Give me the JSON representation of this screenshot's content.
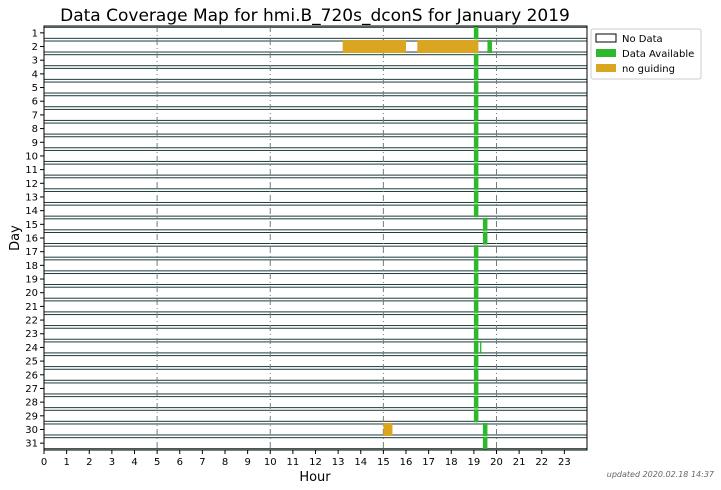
{
  "chart_data": {
    "type": "timeline",
    "title": "Data Coverage Map for hmi.B_720s_dconS for January 2019",
    "xlabel": "Hour",
    "ylabel": "Day",
    "xlim": [
      0,
      24
    ],
    "x_ticks": [
      "0",
      "1",
      "2",
      "3",
      "4",
      "5",
      "6",
      "7",
      "8",
      "9",
      "10",
      "11",
      "12",
      "13",
      "14",
      "15",
      "16",
      "17",
      "18",
      "19",
      "20",
      "21",
      "22",
      "23"
    ],
    "days": [
      "1",
      "2",
      "3",
      "4",
      "5",
      "6",
      "7",
      "8",
      "9",
      "10",
      "11",
      "12",
      "13",
      "14",
      "15",
      "16",
      "17",
      "18",
      "19",
      "20",
      "21",
      "22",
      "23",
      "24",
      "25",
      "26",
      "27",
      "28",
      "29",
      "30",
      "31"
    ],
    "legend": {
      "position": "top-right",
      "entries": [
        {
          "label": "No Data",
          "color": "#ffffff"
        },
        {
          "label": "Data Available",
          "color": "#2eb82e"
        },
        {
          "label": "no guiding",
          "color": "#daa520"
        }
      ]
    },
    "colors": {
      "no_data": "#ffffff",
      "data_available": "#2eb82e",
      "no_guiding": "#daa520",
      "row_line": "#1e3a3a",
      "major_grid": "#6e7f80"
    },
    "segments": [
      {
        "day": 1,
        "start": 19.0,
        "end": 19.2,
        "status": "data_available"
      },
      {
        "day": 2,
        "start": 13.2,
        "end": 16.0,
        "status": "no_guiding"
      },
      {
        "day": 2,
        "start": 16.5,
        "end": 19.2,
        "status": "no_guiding"
      },
      {
        "day": 2,
        "start": 19.6,
        "end": 19.8,
        "status": "data_available"
      },
      {
        "day": 3,
        "start": 19.0,
        "end": 19.2,
        "status": "data_available"
      },
      {
        "day": 4,
        "start": 19.0,
        "end": 19.2,
        "status": "data_available"
      },
      {
        "day": 5,
        "start": 19.0,
        "end": 19.2,
        "status": "data_available"
      },
      {
        "day": 6,
        "start": 19.0,
        "end": 19.2,
        "status": "data_available"
      },
      {
        "day": 7,
        "start": 19.0,
        "end": 19.2,
        "status": "data_available"
      },
      {
        "day": 8,
        "start": 19.0,
        "end": 19.2,
        "status": "data_available"
      },
      {
        "day": 9,
        "start": 19.0,
        "end": 19.2,
        "status": "data_available"
      },
      {
        "day": 10,
        "start": 19.0,
        "end": 19.2,
        "status": "data_available"
      },
      {
        "day": 11,
        "start": 19.0,
        "end": 19.2,
        "status": "data_available"
      },
      {
        "day": 12,
        "start": 19.0,
        "end": 19.2,
        "status": "data_available"
      },
      {
        "day": 13,
        "start": 19.0,
        "end": 19.2,
        "status": "data_available"
      },
      {
        "day": 14,
        "start": 19.0,
        "end": 19.2,
        "status": "data_available"
      },
      {
        "day": 15,
        "start": 19.4,
        "end": 19.6,
        "status": "data_available"
      },
      {
        "day": 16,
        "start": 19.4,
        "end": 19.6,
        "status": "data_available"
      },
      {
        "day": 17,
        "start": 19.0,
        "end": 19.2,
        "status": "data_available"
      },
      {
        "day": 18,
        "start": 19.0,
        "end": 19.2,
        "status": "data_available"
      },
      {
        "day": 19,
        "start": 19.0,
        "end": 19.2,
        "status": "data_available"
      },
      {
        "day": 20,
        "start": 19.0,
        "end": 19.2,
        "status": "data_available"
      },
      {
        "day": 21,
        "start": 19.0,
        "end": 19.2,
        "status": "data_available"
      },
      {
        "day": 22,
        "start": 19.0,
        "end": 19.2,
        "status": "data_available"
      },
      {
        "day": 23,
        "start": 19.0,
        "end": 19.2,
        "status": "data_available"
      },
      {
        "day": 24,
        "start": 19.0,
        "end": 19.2,
        "status": "data_available"
      },
      {
        "day": 24,
        "start": 19.27,
        "end": 19.33,
        "status": "data_available"
      },
      {
        "day": 25,
        "start": 19.0,
        "end": 19.2,
        "status": "data_available"
      },
      {
        "day": 26,
        "start": 19.0,
        "end": 19.2,
        "status": "data_available"
      },
      {
        "day": 27,
        "start": 19.0,
        "end": 19.2,
        "status": "data_available"
      },
      {
        "day": 28,
        "start": 19.0,
        "end": 19.2,
        "status": "data_available"
      },
      {
        "day": 29,
        "start": 19.0,
        "end": 19.2,
        "status": "data_available"
      },
      {
        "day": 30,
        "start": 15.0,
        "end": 15.4,
        "status": "no_guiding"
      },
      {
        "day": 30,
        "start": 19.4,
        "end": 19.6,
        "status": "data_available"
      },
      {
        "day": 31,
        "start": 19.4,
        "end": 19.6,
        "status": "data_available"
      }
    ],
    "major_gridlines_hours": [
      5,
      10,
      15,
      20
    ],
    "footer": "updated 2020.02.18 14:37"
  }
}
